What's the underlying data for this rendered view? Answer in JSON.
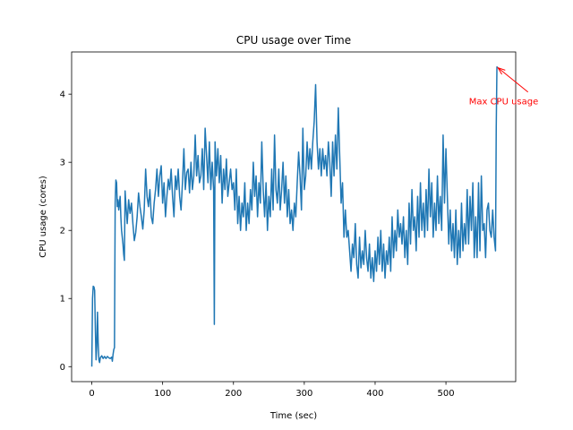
{
  "chart_data": {
    "type": "line",
    "title": "CPU usage over Time",
    "xlabel": "Time (sec)",
    "ylabel": "CPU usage (cores)",
    "xlim": [
      -28.5,
      598.5
    ],
    "ylim": [
      -0.22,
      4.62
    ],
    "xticks": [
      0,
      100,
      200,
      300,
      400,
      500
    ],
    "yticks": [
      0,
      1,
      2,
      3,
      4
    ],
    "grid": false,
    "series": [
      {
        "color": "#1f77b4",
        "points": [
          [
            0,
            0.0
          ],
          [
            1,
            1.0
          ],
          [
            2,
            1.18
          ],
          [
            3,
            1.17
          ],
          [
            4,
            1.12
          ],
          [
            5,
            0.55
          ],
          [
            6,
            0.1
          ],
          [
            7,
            0.3
          ],
          [
            8,
            0.8
          ],
          [
            9,
            0.35
          ],
          [
            10,
            0.1
          ],
          [
            11,
            0.06
          ],
          [
            12,
            0.13
          ],
          [
            14,
            0.16
          ],
          [
            16,
            0.12
          ],
          [
            18,
            0.15
          ],
          [
            20,
            0.12
          ],
          [
            22,
            0.15
          ],
          [
            24,
            0.13
          ],
          [
            26,
            0.12
          ],
          [
            28,
            0.14
          ],
          [
            29,
            0.08
          ],
          [
            30,
            0.18
          ],
          [
            31,
            0.25
          ],
          [
            32,
            0.28
          ],
          [
            33,
            2.4
          ],
          [
            34,
            2.74
          ],
          [
            35,
            2.7
          ],
          [
            36,
            2.35
          ],
          [
            37,
            2.45
          ],
          [
            38,
            2.3
          ],
          [
            40,
            2.5
          ],
          [
            41,
            2.2
          ],
          [
            42,
            2.0
          ],
          [
            44,
            1.8
          ],
          [
            45,
            1.65
          ],
          [
            46,
            1.56
          ],
          [
            47,
            2.58
          ],
          [
            48,
            2.4
          ],
          [
            50,
            2.1
          ],
          [
            52,
            2.45
          ],
          [
            54,
            2.25
          ],
          [
            56,
            2.4
          ],
          [
            58,
            2.1
          ],
          [
            60,
            1.85
          ],
          [
            62,
            1.97
          ],
          [
            64,
            2.2
          ],
          [
            66,
            2.55
          ],
          [
            68,
            2.35
          ],
          [
            70,
            2.2
          ],
          [
            72,
            2.02
          ],
          [
            74,
            2.3
          ],
          [
            76,
            2.9
          ],
          [
            78,
            2.5
          ],
          [
            80,
            2.35
          ],
          [
            82,
            2.6
          ],
          [
            84,
            2.2
          ],
          [
            86,
            2.1
          ],
          [
            88,
            2.4
          ],
          [
            90,
            2.6
          ],
          [
            92,
            2.9
          ],
          [
            94,
            2.5
          ],
          [
            96,
            2.8
          ],
          [
            98,
            2.95
          ],
          [
            100,
            2.4
          ],
          [
            102,
            2.7
          ],
          [
            104,
            2.2
          ],
          [
            106,
            2.5
          ],
          [
            108,
            2.75
          ],
          [
            110,
            2.6
          ],
          [
            112,
            2.9
          ],
          [
            114,
            2.5
          ],
          [
            116,
            2.2
          ],
          [
            118,
            2.8
          ],
          [
            120,
            2.6
          ],
          [
            122,
            2.9
          ],
          [
            124,
            2.5
          ],
          [
            126,
            2.3
          ],
          [
            128,
            2.7
          ],
          [
            130,
            3.2
          ],
          [
            132,
            2.6
          ],
          [
            134,
            2.85
          ],
          [
            136,
            2.9
          ],
          [
            138,
            2.55
          ],
          [
            140,
            3.0
          ],
          [
            142,
            2.6
          ],
          [
            144,
            2.8
          ],
          [
            146,
            3.4
          ],
          [
            148,
            2.8
          ],
          [
            150,
            3.1
          ],
          [
            152,
            2.7
          ],
          [
            154,
            2.8
          ],
          [
            156,
            3.2
          ],
          [
            158,
            2.6
          ],
          [
            160,
            3.5
          ],
          [
            162,
            3.1
          ],
          [
            164,
            2.7
          ],
          [
            166,
            3.3
          ],
          [
            168,
            2.6
          ],
          [
            170,
            3.0
          ],
          [
            172,
            2.6
          ],
          [
            173,
            0.62
          ],
          [
            174,
            3.3
          ],
          [
            176,
            2.8
          ],
          [
            178,
            3.2
          ],
          [
            180,
            2.7
          ],
          [
            182,
            3.1
          ],
          [
            184,
            2.4
          ],
          [
            186,
            2.9
          ],
          [
            188,
            2.6
          ],
          [
            190,
            3.05
          ],
          [
            192,
            2.5
          ],
          [
            194,
            2.7
          ],
          [
            196,
            2.9
          ],
          [
            198,
            2.6
          ],
          [
            200,
            2.7
          ],
          [
            202,
            2.3
          ],
          [
            204,
            2.9
          ],
          [
            206,
            2.1
          ],
          [
            208,
            2.5
          ],
          [
            210,
            2.0
          ],
          [
            212,
            2.4
          ],
          [
            214,
            2.2
          ],
          [
            216,
            2.7
          ],
          [
            218,
            2.0
          ],
          [
            220,
            2.4
          ],
          [
            222,
            2.1
          ],
          [
            224,
            2.6
          ],
          [
            226,
            2.3
          ],
          [
            228,
            3.0
          ],
          [
            230,
            2.5
          ],
          [
            232,
            2.8
          ],
          [
            234,
            2.2
          ],
          [
            236,
            2.7
          ],
          [
            238,
            2.4
          ],
          [
            240,
            3.3
          ],
          [
            242,
            2.6
          ],
          [
            244,
            2.2
          ],
          [
            246,
            2.7
          ],
          [
            248,
            2.0
          ],
          [
            250,
            2.5
          ],
          [
            252,
            2.2
          ],
          [
            254,
            2.9
          ],
          [
            256,
            2.3
          ],
          [
            258,
            3.4
          ],
          [
            260,
            2.6
          ],
          [
            262,
            2.4
          ],
          [
            264,
            2.9
          ],
          [
            266,
            2.3
          ],
          [
            268,
            2.6
          ],
          [
            270,
            3.0
          ],
          [
            272,
            2.4
          ],
          [
            274,
            2.8
          ],
          [
            276,
            2.2
          ],
          [
            278,
            2.6
          ],
          [
            280,
            2.1
          ],
          [
            282,
            2.3
          ],
          [
            284,
            2.0
          ],
          [
            286,
            2.4
          ],
          [
            288,
            2.2
          ],
          [
            290,
            2.7
          ],
          [
            292,
            3.15
          ],
          [
            294,
            2.8
          ],
          [
            296,
            2.3
          ],
          [
            298,
            3.5
          ],
          [
            300,
            2.6
          ],
          [
            302,
            2.8
          ],
          [
            304,
            3.3
          ],
          [
            306,
            2.9
          ],
          [
            308,
            3.2
          ],
          [
            310,
            2.9
          ],
          [
            312,
            3.3
          ],
          [
            314,
            3.6
          ],
          [
            316,
            4.14
          ],
          [
            318,
            3.3
          ],
          [
            320,
            2.9
          ],
          [
            322,
            3.2
          ],
          [
            324,
            2.8
          ],
          [
            326,
            3.2
          ],
          [
            328,
            2.9
          ],
          [
            330,
            3.1
          ],
          [
            332,
            2.8
          ],
          [
            334,
            3.3
          ],
          [
            336,
            3.0
          ],
          [
            338,
            2.5
          ],
          [
            340,
            3.3
          ],
          [
            342,
            2.8
          ],
          [
            344,
            3.4
          ],
          [
            346,
            2.9
          ],
          [
            348,
            3.8
          ],
          [
            350,
            3.1
          ],
          [
            352,
            2.4
          ],
          [
            354,
            2.7
          ],
          [
            356,
            1.9
          ],
          [
            358,
            2.3
          ],
          [
            360,
            1.9
          ],
          [
            362,
            2.0
          ],
          [
            364,
            1.7
          ],
          [
            366,
            1.4
          ],
          [
            368,
            1.8
          ],
          [
            370,
            1.6
          ],
          [
            372,
            2.1
          ],
          [
            374,
            1.5
          ],
          [
            376,
            1.3
          ],
          [
            378,
            1.9
          ],
          [
            380,
            1.45
          ],
          [
            382,
            1.7
          ],
          [
            384,
            1.5
          ],
          [
            386,
            2.0
          ],
          [
            388,
            1.6
          ],
          [
            390,
            1.4
          ],
          [
            392,
            1.8
          ],
          [
            394,
            1.3
          ],
          [
            396,
            1.6
          ],
          [
            398,
            1.25
          ],
          [
            400,
            1.7
          ],
          [
            402,
            1.4
          ],
          [
            404,
            1.9
          ],
          [
            406,
            1.5
          ],
          [
            408,
            2.0
          ],
          [
            410,
            1.4
          ],
          [
            412,
            1.8
          ],
          [
            414,
            1.3
          ],
          [
            416,
            1.7
          ],
          [
            418,
            1.5
          ],
          [
            420,
            1.9
          ],
          [
            422,
            1.4
          ],
          [
            424,
            2.2
          ],
          [
            426,
            1.6
          ],
          [
            428,
            2.0
          ],
          [
            430,
            1.7
          ],
          [
            432,
            2.3
          ],
          [
            434,
            1.9
          ],
          [
            436,
            2.1
          ],
          [
            438,
            1.8
          ],
          [
            440,
            2.2
          ],
          [
            442,
            1.6
          ],
          [
            444,
            2.0
          ],
          [
            446,
            1.5
          ],
          [
            448,
            2.4
          ],
          [
            450,
            1.8
          ],
          [
            452,
            2.6
          ],
          [
            454,
            2.0
          ],
          [
            456,
            2.2
          ],
          [
            458,
            1.7
          ],
          [
            460,
            2.5
          ],
          [
            462,
            1.9
          ],
          [
            464,
            2.7
          ],
          [
            466,
            2.0
          ],
          [
            468,
            2.4
          ],
          [
            470,
            1.9
          ],
          [
            472,
            2.6
          ],
          [
            474,
            2.0
          ],
          [
            476,
            2.9
          ],
          [
            478,
            2.2
          ],
          [
            480,
            2.7
          ],
          [
            482,
            1.9
          ],
          [
            484,
            2.4
          ],
          [
            486,
            2.0
          ],
          [
            488,
            2.8
          ],
          [
            490,
            2.1
          ],
          [
            492,
            2.5
          ],
          [
            494,
            2.0
          ],
          [
            496,
            3.4
          ],
          [
            498,
            2.4
          ],
          [
            500,
            3.2
          ],
          [
            502,
            2.5
          ],
          [
            504,
            1.8
          ],
          [
            506,
            2.3
          ],
          [
            508,
            1.7
          ],
          [
            510,
            2.1
          ],
          [
            512,
            1.6
          ],
          [
            514,
            2.3
          ],
          [
            516,
            1.5
          ],
          [
            518,
            2.0
          ],
          [
            520,
            1.6
          ],
          [
            522,
            2.4
          ],
          [
            524,
            1.7
          ],
          [
            526,
            2.1
          ],
          [
            528,
            1.8
          ],
          [
            530,
            2.6
          ],
          [
            532,
            1.8
          ],
          [
            534,
            2.5
          ],
          [
            536,
            2.0
          ],
          [
            538,
            2.7
          ],
          [
            540,
            1.6
          ],
          [
            542,
            2.2
          ],
          [
            544,
            1.6
          ],
          [
            546,
            2.7
          ],
          [
            548,
            1.7
          ],
          [
            550,
            2.8
          ],
          [
            552,
            2.0
          ],
          [
            554,
            2.1
          ],
          [
            556,
            1.6
          ],
          [
            558,
            2.3
          ],
          [
            560,
            2.4
          ],
          [
            562,
            2.0
          ],
          [
            564,
            1.9
          ],
          [
            566,
            2.3
          ],
          [
            568,
            1.9
          ],
          [
            570,
            1.7
          ],
          [
            571,
            3.5
          ],
          [
            572,
            4.4
          ],
          [
            573,
            4.4
          ]
        ]
      }
    ],
    "annotations": [
      {
        "text": "Max CPU usage",
        "color": "#ff0000",
        "xy": [
          572,
          4.4
        ],
        "xytext": [
          540,
          3.9
        ]
      }
    ]
  }
}
